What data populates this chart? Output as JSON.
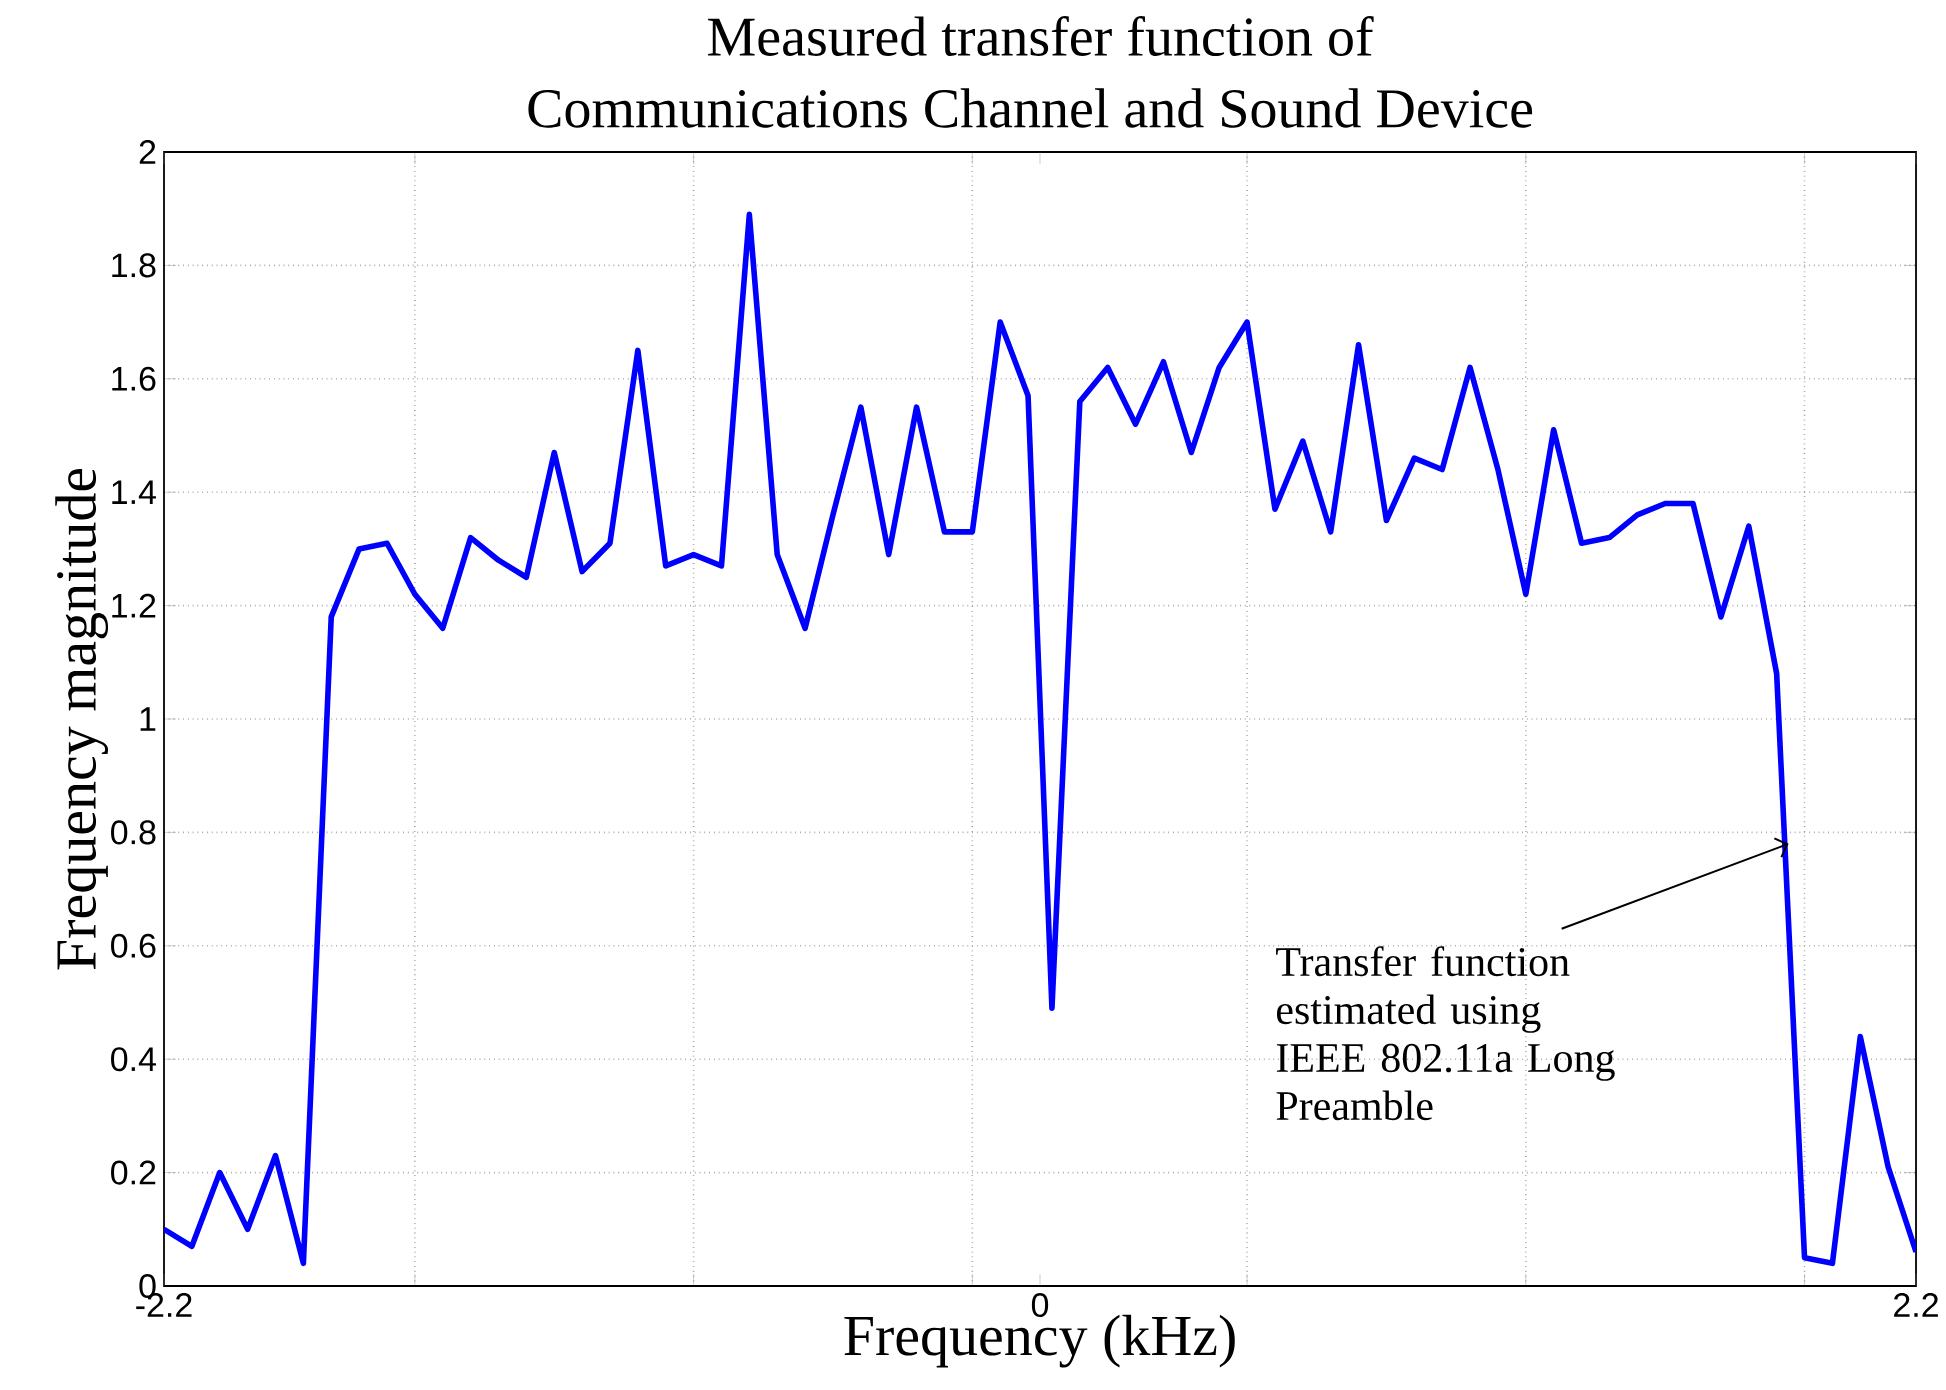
{
  "chart_data": {
    "type": "line",
    "title": "Measured transfer function of",
    "subtitle": "Communications Channel and Sound Device",
    "xlabel": "Frequency (kHz)",
    "ylabel": "Frequency magnitude",
    "annotations": [
      {
        "text": "Transfer function estimated using IEEE 802.11a Long Preamble",
        "x": 1.88,
        "y": 0.78
      }
    ],
    "x": [
      -2.2,
      -2.13,
      -2.06,
      -1.99,
      -1.92,
      -1.85,
      -1.78,
      -1.71,
      -1.64,
      -1.57,
      -1.5,
      -1.43,
      -1.36,
      -1.29,
      -1.22,
      -1.15,
      -1.08,
      -1.01,
      -0.94,
      -0.87,
      -0.8,
      -0.73,
      -0.66,
      -0.59,
      -0.52,
      -0.45,
      -0.38,
      -0.31,
      -0.24,
      -0.17,
      -0.1,
      -0.03,
      0.03,
      0.1,
      0.17,
      0.24,
      0.31,
      0.38,
      0.45,
      0.52,
      0.59,
      0.66,
      0.73,
      0.8,
      0.87,
      0.94,
      1.01,
      1.08,
      1.15,
      1.22,
      1.29,
      1.36,
      1.43,
      1.5,
      1.57,
      1.64,
      1.71,
      1.78,
      1.85,
      1.92,
      1.99,
      2.06,
      2.13,
      2.2
    ],
    "series": [
      {
        "color": "#0000ff",
        "values": [
          0.1,
          0.07,
          0.2,
          0.1,
          0.23,
          0.04,
          1.18,
          1.3,
          1.31,
          1.22,
          1.16,
          1.32,
          1.28,
          1.25,
          1.47,
          1.26,
          1.31,
          1.65,
          1.27,
          1.29,
          1.27,
          1.89,
          1.29,
          1.16,
          1.36,
          1.55,
          1.29,
          1.55,
          1.33,
          1.33,
          1.7,
          1.57,
          0.49,
          1.56,
          1.62,
          1.52,
          1.63,
          1.47,
          1.62,
          1.7,
          1.37,
          1.49,
          1.33,
          1.66,
          1.35,
          1.46,
          1.44,
          1.62,
          1.44,
          1.22,
          1.51,
          1.31,
          1.32,
          1.36,
          1.38,
          1.38,
          1.18,
          1.34,
          1.08,
          0.05,
          0.04,
          0.44,
          0.21,
          0.06
        ]
      }
    ],
    "xlim": [
      -2.2,
      2.2
    ],
    "ylim": [
      0,
      2
    ],
    "xticks": [
      -2.2,
      {
        "value": -1.57,
        "label": null
      },
      {
        "value": -0.87,
        "label": null
      },
      {
        "value": -0.17,
        "label": null
      },
      0,
      {
        "value": 0.52,
        "label": null
      },
      {
        "value": 1.22,
        "label": null
      },
      {
        "value": 1.92,
        "label": null
      },
      2.2
    ],
    "yticks": [
      0,
      0.2,
      0.4,
      0.6,
      0.8,
      1,
      1.2,
      1.4,
      1.6,
      1.8,
      2
    ],
    "grid": true
  }
}
